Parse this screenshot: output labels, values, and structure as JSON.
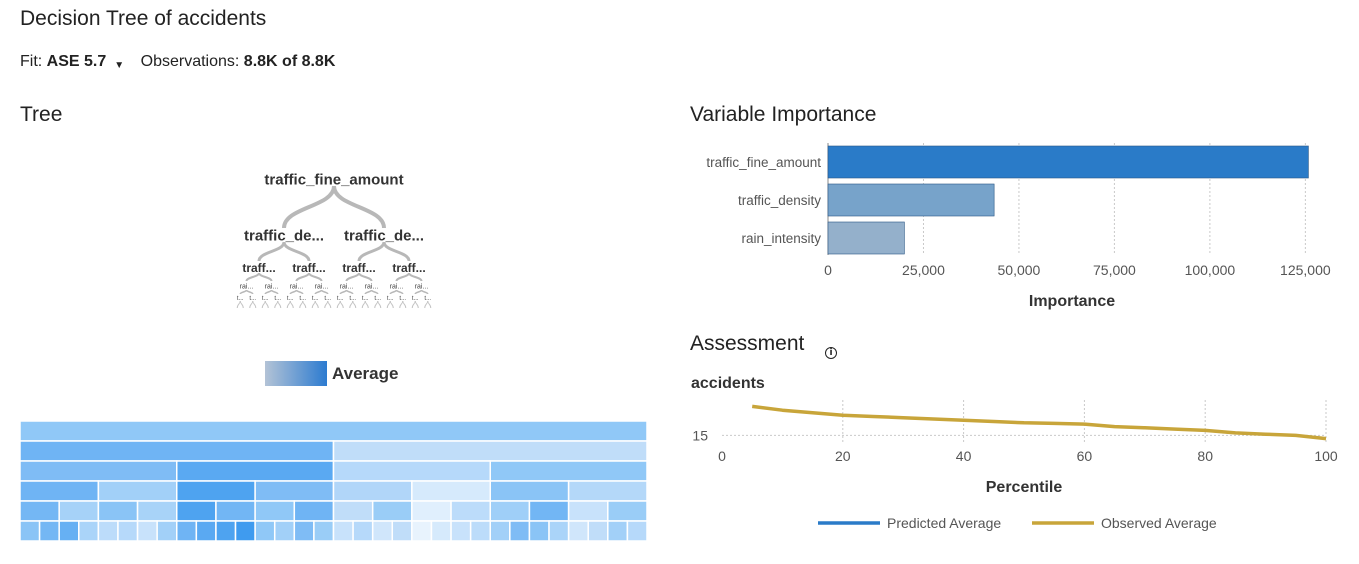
{
  "header": {
    "title": "Decision Tree of accidents",
    "fit_label": "Fit:",
    "fit_value": "ASE 5.7",
    "caret_icon": "caret-down-icon",
    "obs_label": "Observations:",
    "obs_value": "8.8K of 8.8K"
  },
  "tree": {
    "title": "Tree",
    "root_label": "traffic_fine_amount",
    "level1_labels": [
      "traffic_de...",
      "traffic_de..."
    ],
    "level2_labels": [
      "traff...",
      "traff...",
      "traff...",
      "traff..."
    ],
    "level3_labels": [
      "rai...",
      "rai...",
      "rai...",
      "rai...",
      "rai...",
      "rai...",
      "rai...",
      "rai..."
    ],
    "level4_labels": [
      "t...",
      "t...",
      "t...",
      "t...",
      "t...",
      "t...",
      "t...",
      "t...",
      "t...",
      "t...",
      "t...",
      "t...",
      "t...",
      "t...",
      "t...",
      "t..."
    ],
    "legend_label": "Average",
    "legend_colors": [
      "#b3c3d6",
      "#2c7bd0"
    ]
  },
  "icicle": {
    "colors": {
      "root": "#90c8f7",
      "l1": [
        "#6fb4f4",
        "#c0ddf9"
      ],
      "l2": [
        "#7fbcf5",
        "#5aa9f2",
        "#b6d9fa",
        "#90c8f7"
      ],
      "l3": [
        "#6fb4f4",
        "#a2d0f8",
        "#4ea3f0",
        "#7fbcf5",
        "#b1d6f9",
        "#d6eafc",
        "#8ac4f6",
        "#b4d8f9"
      ],
      "l4": [
        "#74b7f4",
        "#a6d2f8",
        "#8ac4f6",
        "#a8d3f8",
        "#4ea3f0",
        "#72b6f4",
        "#90c8f7",
        "#6fb4f4",
        "#c0ddf9",
        "#9acdf7",
        "#e0effd",
        "#bcdcfa",
        "#9fcff8",
        "#72b6f4",
        "#c8e2fb",
        "#9acdf7"
      ],
      "l5": [
        "#8ac4f6",
        "#74b7f4",
        "#66b0f3",
        "#aad4f9",
        "#bcdcfa",
        "#b6d9fa",
        "#c8e2fb",
        "#a2d0f8",
        "#6fb4f4",
        "#5aa9f2",
        "#4ea3f0",
        "#3f9bef",
        "#90c8f7",
        "#a2d0f8",
        "#7fbcf5",
        "#9acdf7",
        "#c8e2fb",
        "#b6d9fa",
        "#d0e6fb",
        "#c0ddf9",
        "#e8f3fd",
        "#d6eafc",
        "#c8e2fb",
        "#bcdcfa",
        "#a2d0f8",
        "#7fbcf5",
        "#8ac4f6",
        "#aad4f9",
        "#d0e6fb",
        "#c0ddf9",
        "#a2d0f8",
        "#b6d9fa"
      ]
    }
  },
  "variable_importance": {
    "title": "Variable Importance",
    "chart_data": {
      "type": "bar",
      "orientation": "horizontal",
      "categories": [
        "traffic_fine_amount",
        "traffic_density",
        "rain_intensity"
      ],
      "values": [
        125800,
        43500,
        20000
      ],
      "colors": [
        "#2a7bc8",
        "#77a3ca",
        "#94b0cb"
      ],
      "xlabel": "Importance",
      "xlim": [
        0,
        127000
      ],
      "xticks": [
        0,
        25000,
        50000,
        75000,
        100000,
        125000
      ],
      "xtick_labels": [
        "0",
        "25,000",
        "50,000",
        "75,000",
        "100,000",
        "125,000"
      ],
      "grid": "vertical-dotted"
    }
  },
  "assessment": {
    "title": "Assessment",
    "info_icon": "info-icon",
    "chart_data": {
      "type": "line",
      "ylabel": "accidents",
      "xlabel": "Percentile",
      "xlim": [
        0,
        100
      ],
      "xticks": [
        0,
        20,
        40,
        60,
        80,
        100
      ],
      "yticks": [
        15
      ],
      "ylim": [
        14.4,
        18.2
      ],
      "series": [
        {
          "name": "Predicted Average",
          "color": "#2a7bc8",
          "x": [],
          "y": []
        },
        {
          "name": "Observed Average",
          "color": "#c8a53a",
          "x": [
            5,
            10,
            15,
            20,
            25,
            30,
            35,
            40,
            45,
            50,
            55,
            60,
            65,
            70,
            75,
            80,
            85,
            90,
            95,
            100
          ],
          "y": [
            17.3,
            17.0,
            16.8,
            16.6,
            16.5,
            16.4,
            16.3,
            16.2,
            16.1,
            16.0,
            15.95,
            15.9,
            15.7,
            15.6,
            15.5,
            15.4,
            15.2,
            15.1,
            15.0,
            14.75
          ]
        }
      ],
      "legend": "bottom"
    }
  }
}
